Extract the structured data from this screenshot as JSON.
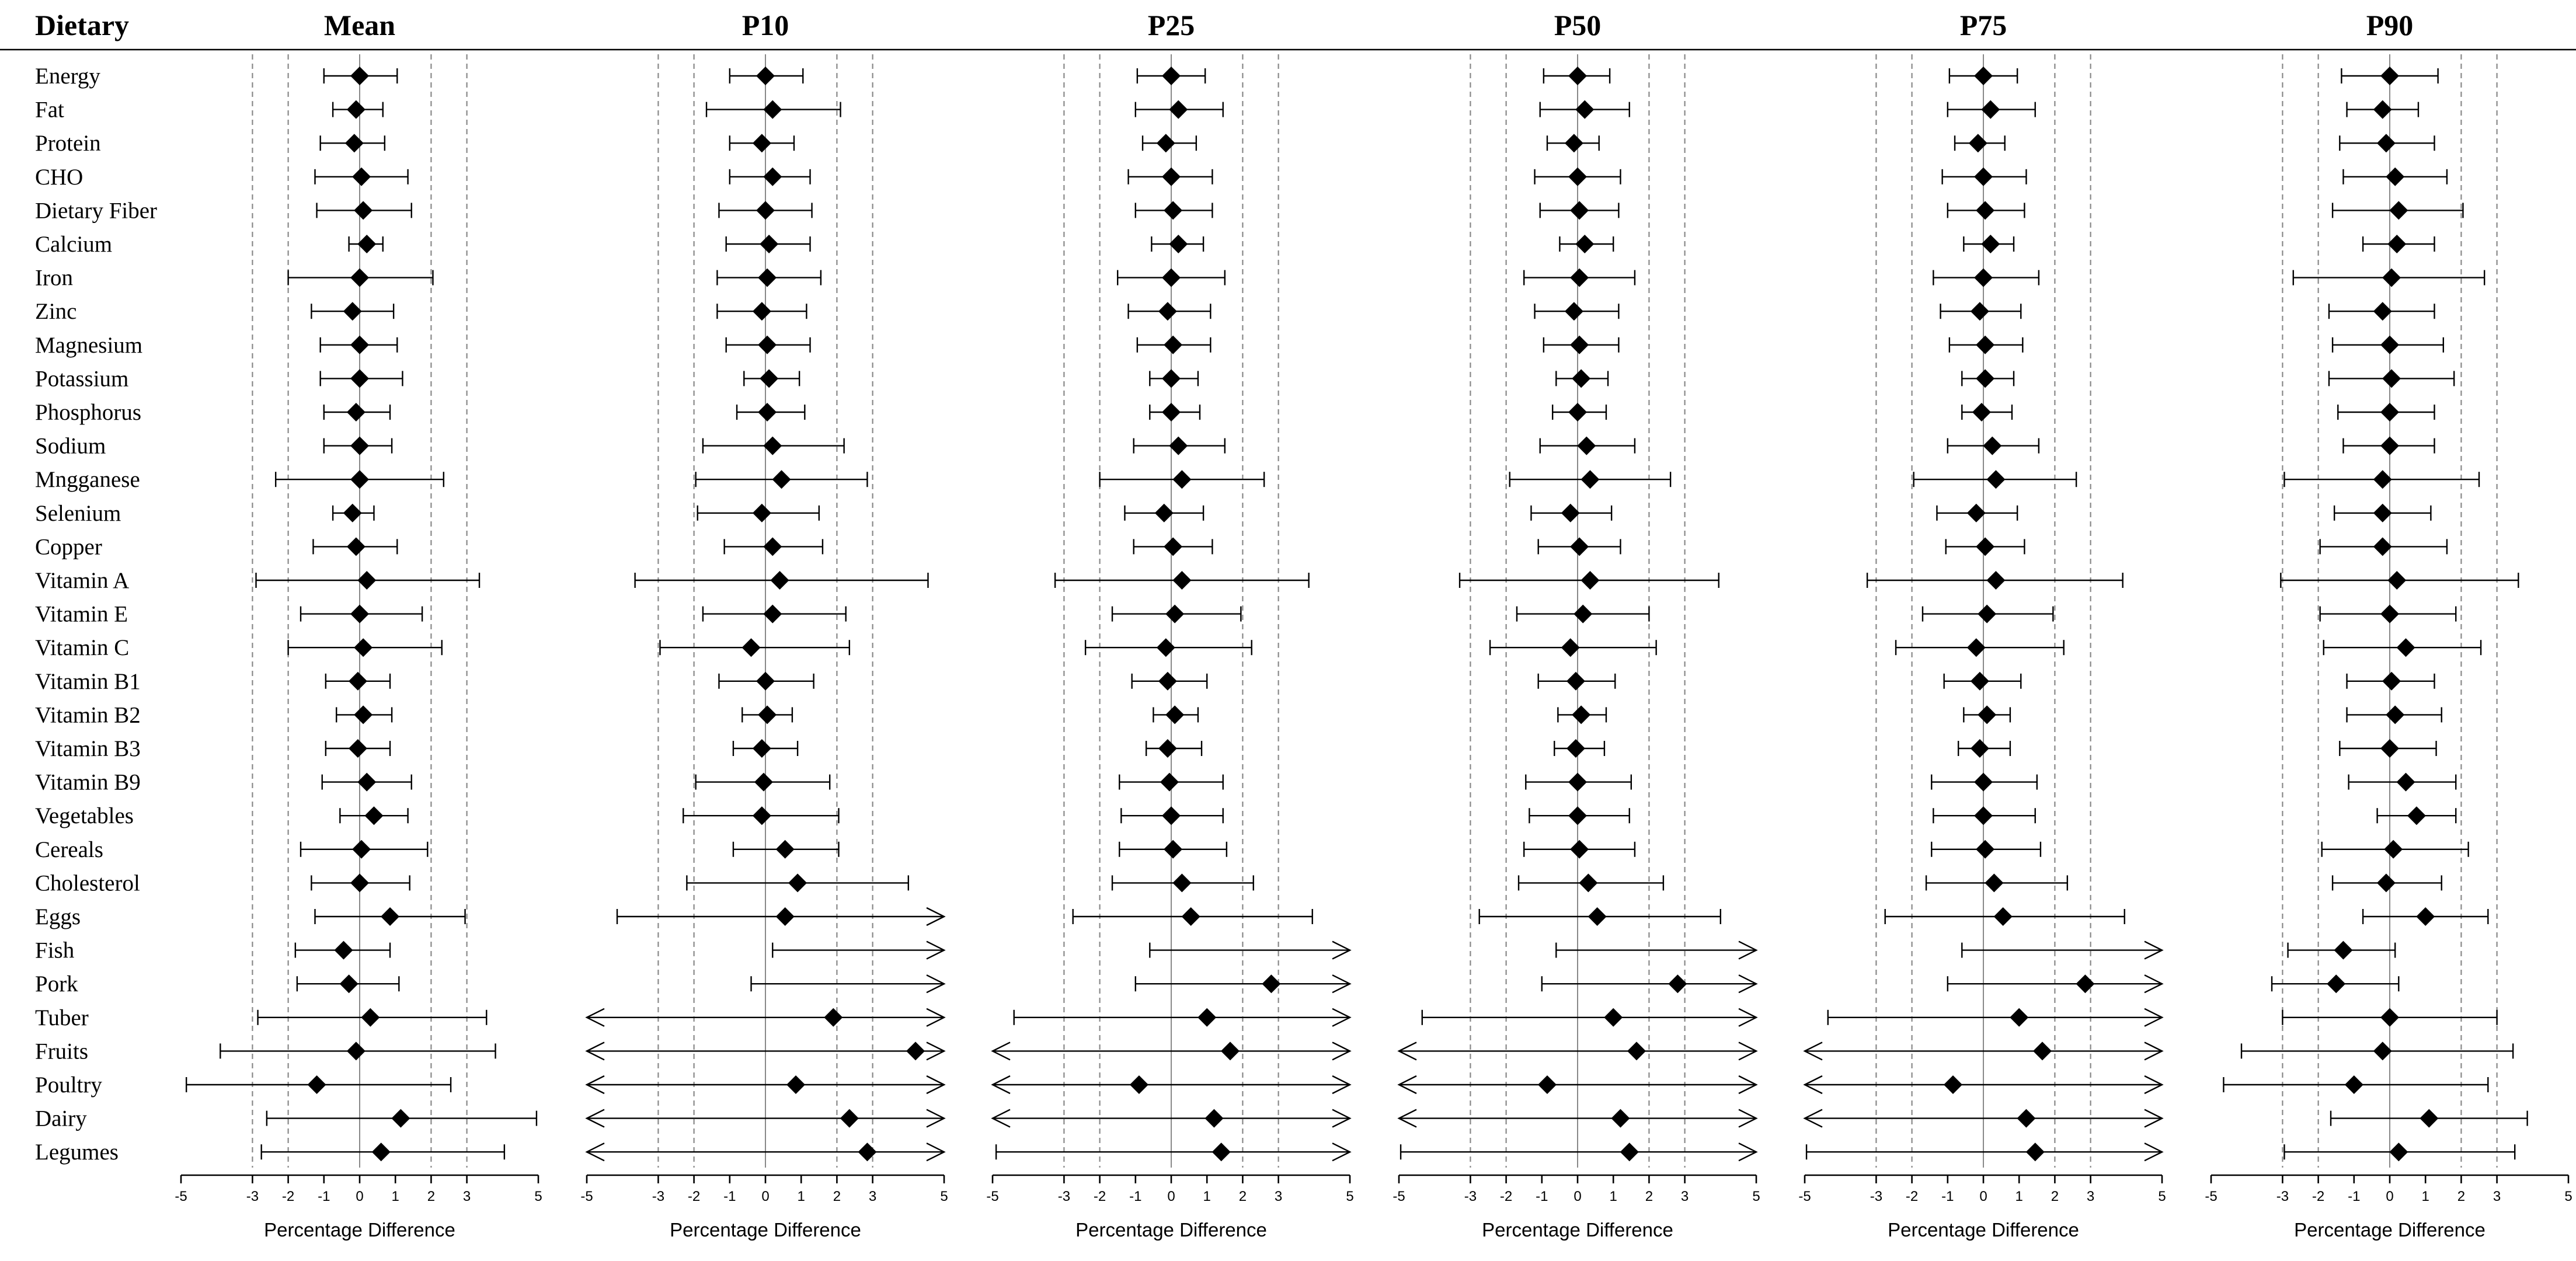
{
  "row_header": "Dietary",
  "rows": [
    "Energy",
    "Fat",
    "Protein",
    "CHO",
    "Dietary Fiber",
    "Calcium",
    "Iron",
    "Zinc",
    "Magnesium",
    "Potassium",
    "Phosphorus",
    "Sodium",
    "Mngganese",
    "Selenium",
    "Copper",
    "Vitamin A",
    "Vitamin E",
    "Vitamin C",
    "Vitamin B1",
    "Vitamin B2",
    "Vitamin B3",
    "Vitamin B9",
    "Vegetables",
    "Cereals",
    "Cholesterol",
    "Eggs",
    "Fish",
    "Pork",
    "Tuber",
    "Fruits",
    "Poultry",
    "Dairy",
    "Legumes"
  ],
  "colors": {
    "point": "#000000",
    "reference_lines": "#888888",
    "axis": "#000000"
  },
  "chart_data": [
    {
      "type": "forest",
      "title": "Mean",
      "xlabel": "Percentage Difference",
      "xlim": [
        -5,
        5
      ],
      "xticks": [
        "-5",
        "-3",
        "-2",
        "-1",
        "0",
        "1",
        "2",
        "3",
        "5"
      ],
      "reference_lines": [
        -3,
        -2,
        2,
        3
      ],
      "points": [
        0,
        -0.1,
        -0.15,
        0.05,
        0.1,
        0.2,
        0,
        -0.2,
        0,
        0,
        -0.1,
        0,
        0,
        -0.2,
        -0.1,
        0.2,
        0,
        0.1,
        -0.05,
        0.1,
        -0.05,
        0.2,
        0.4,
        0.05,
        0,
        0.85,
        -0.45,
        -0.3,
        0.3,
        -0.1,
        -1.2,
        1.15,
        0.6
      ],
      "ci_low": [
        -1,
        -0.75,
        -1.1,
        -1.25,
        -1.2,
        -0.3,
        -2,
        -1.35,
        -1.1,
        -1.1,
        -1,
        -1,
        -2.35,
        -0.75,
        -1.3,
        -2.9,
        -1.65,
        -2,
        -0.95,
        -0.65,
        -0.95,
        -1.05,
        -0.55,
        -1.65,
        -1.35,
        -1.25,
        -1.8,
        -1.75,
        -2.85,
        -3.9,
        -4.85,
        -2.6,
        -2.75
      ],
      "ci_high": [
        1.05,
        0.65,
        0.7,
        1.35,
        1.45,
        0.65,
        2.05,
        0.95,
        1.05,
        1.2,
        0.85,
        0.9,
        2.35,
        0.4,
        1.05,
        3.35,
        1.75,
        2.3,
        0.85,
        0.9,
        0.85,
        1.45,
        1.35,
        1.9,
        1.4,
        2.95,
        0.85,
        1.1,
        3.55,
        3.8,
        2.55,
        4.95,
        4.05
      ],
      "arrow_left": [],
      "arrow_right": []
    },
    {
      "type": "forest",
      "title": "P10",
      "xlabel": "Percentage Difference",
      "xlim": [
        -5,
        5
      ],
      "xticks": [
        "-5",
        "-3",
        "-2",
        "-1",
        "0",
        "1",
        "2",
        "3",
        "5"
      ],
      "reference_lines": [
        -3,
        -2,
        2,
        3
      ],
      "points": [
        0,
        0.2,
        -0.1,
        0.2,
        0,
        0.1,
        0.05,
        -0.1,
        0.05,
        0.1,
        0.05,
        0.2,
        0.45,
        -0.1,
        0.2,
        0.4,
        0.2,
        -0.4,
        0,
        0.05,
        -0.1,
        -0.05,
        -0.1,
        0.55,
        0.9,
        0.55,
        null,
        null,
        1.9,
        4.2,
        0.85,
        2.35,
        2.85
      ],
      "ci_low": [
        -1,
        -1.65,
        -1,
        -1,
        -1.3,
        -1.1,
        -1.35,
        -1.35,
        -1.1,
        -0.6,
        -0.8,
        -1.75,
        -1.95,
        -1.9,
        -1.15,
        -3.65,
        -1.75,
        -2.95,
        -1.3,
        -0.65,
        -0.9,
        -1.95,
        -2.3,
        -0.9,
        -2.2,
        -4.15,
        0.2,
        -0.4,
        -5,
        -5,
        -5,
        -5,
        -5
      ],
      "ci_high": [
        1.05,
        2.1,
        0.8,
        1.25,
        1.3,
        1.25,
        1.55,
        1.15,
        1.25,
        0.95,
        1.1,
        2.2,
        2.85,
        1.5,
        1.6,
        4.55,
        2.25,
        2.35,
        1.35,
        0.75,
        0.9,
        1.8,
        2.05,
        2.05,
        4,
        5,
        5,
        5,
        5,
        5,
        5,
        5,
        5
      ],
      "arrow_left": [
        "Tuber",
        "Fruits",
        "Poultry",
        "Dairy",
        "Legumes"
      ],
      "arrow_right": [
        "Eggs",
        "Fish",
        "Pork",
        "Tuber",
        "Fruits",
        "Poultry",
        "Dairy",
        "Legumes"
      ]
    },
    {
      "type": "forest",
      "title": "P25",
      "xlabel": "Percentage Difference",
      "xlim": [
        -5,
        5
      ],
      "xticks": [
        "-5",
        "-3",
        "-2",
        "-1",
        "0",
        "1",
        "2",
        "3",
        "5"
      ],
      "reference_lines": [
        -3,
        -2,
        2,
        3
      ],
      "points": [
        0,
        0.2,
        -0.15,
        0,
        0.05,
        0.2,
        0,
        -0.1,
        0.05,
        0,
        0,
        0.2,
        0.3,
        -0.2,
        0.05,
        0.3,
        0.1,
        -0.15,
        -0.1,
        0.1,
        -0.1,
        -0.05,
        0,
        0.05,
        0.3,
        0.55,
        null,
        2.8,
        1,
        1.65,
        -0.9,
        1.2,
        1.4
      ],
      "ci_low": [
        -0.95,
        -1,
        -0.8,
        -1.2,
        -1,
        -0.55,
        -1.5,
        -1.2,
        -0.95,
        -0.6,
        -0.6,
        -1.05,
        -2,
        -1.3,
        -1.05,
        -3.25,
        -1.65,
        -2.4,
        -1.1,
        -0.5,
        -0.7,
        -1.45,
        -1.4,
        -1.45,
        -1.65,
        -2.75,
        -0.6,
        -1,
        -4.4,
        -5,
        -5,
        -5,
        -4.9
      ],
      "ci_high": [
        0.95,
        1.45,
        0.7,
        1.15,
        1.15,
        0.9,
        1.5,
        1.1,
        1.1,
        0.75,
        0.8,
        1.5,
        2.6,
        0.9,
        1.15,
        3.85,
        1.95,
        2.25,
        1,
        0.75,
        0.85,
        1.45,
        1.45,
        1.55,
        2.3,
        3.95,
        5,
        5,
        5,
        5,
        5,
        5,
        5
      ],
      "arrow_left": [
        "Fruits",
        "Poultry",
        "Dairy"
      ],
      "arrow_right": [
        "Fish",
        "Pork",
        "Tuber",
        "Fruits",
        "Poultry",
        "Dairy",
        "Legumes"
      ]
    },
    {
      "type": "forest",
      "title": "P50",
      "xlabel": "Percentage Difference",
      "xlim": [
        -5,
        5
      ],
      "xticks": [
        "-5",
        "-3",
        "-2",
        "-1",
        "0",
        "1",
        "2",
        "3",
        "5"
      ],
      "reference_lines": [
        -3,
        -2,
        2,
        3
      ],
      "points": [
        0,
        0.2,
        -0.1,
        0,
        0.05,
        0.2,
        0.05,
        -0.1,
        0.05,
        0.1,
        0,
        0.25,
        0.35,
        -0.2,
        0.05,
        0.35,
        0.15,
        -0.2,
        -0.05,
        0.1,
        -0.05,
        0,
        0,
        0.05,
        0.3,
        0.55,
        null,
        2.8,
        1,
        1.65,
        -0.85,
        1.2,
        1.45
      ],
      "ci_low": [
        -0.95,
        -1.05,
        -0.85,
        -1.2,
        -1.05,
        -0.5,
        -1.5,
        -1.2,
        -0.95,
        -0.6,
        -0.7,
        -1.05,
        -1.9,
        -1.3,
        -1.1,
        -3.3,
        -1.7,
        -2.45,
        -1.1,
        -0.55,
        -0.65,
        -1.45,
        -1.35,
        -1.5,
        -1.65,
        -2.75,
        -0.6,
        -1,
        -4.35,
        -5,
        -5,
        -5,
        -4.95
      ],
      "ci_high": [
        0.9,
        1.45,
        0.6,
        1.2,
        1.15,
        1,
        1.6,
        1.15,
        1.15,
        0.85,
        0.8,
        1.6,
        2.6,
        0.95,
        1.2,
        3.95,
        2,
        2.2,
        1.05,
        0.8,
        0.75,
        1.5,
        1.45,
        1.6,
        2.4,
        4,
        5,
        5,
        5,
        5,
        5,
        5,
        5
      ],
      "arrow_left": [
        "Fruits",
        "Poultry",
        "Dairy"
      ],
      "arrow_right": [
        "Fish",
        "Pork",
        "Tuber",
        "Fruits",
        "Poultry",
        "Dairy",
        "Legumes"
      ]
    },
    {
      "type": "forest",
      "title": "P75",
      "xlabel": "Percentage Difference",
      "xlim": [
        -5,
        5
      ],
      "xticks": [
        "-5",
        "-3",
        "-2",
        "-1",
        "0",
        "1",
        "2",
        "3",
        "5"
      ],
      "reference_lines": [
        -3,
        -2,
        2,
        3
      ],
      "points": [
        0,
        0.2,
        -0.15,
        0,
        0.05,
        0.2,
        0,
        -0.1,
        0.05,
        0.05,
        -0.05,
        0.25,
        0.35,
        -0.2,
        0.05,
        0.35,
        0.1,
        -0.2,
        -0.1,
        0.1,
        -0.1,
        0,
        0,
        0.05,
        0.3,
        0.55,
        null,
        2.85,
        1,
        1.65,
        -0.85,
        1.2,
        1.45
      ],
      "ci_low": [
        -0.95,
        -1,
        -0.8,
        -1.15,
        -1,
        -0.55,
        -1.4,
        -1.2,
        -0.95,
        -0.6,
        -0.6,
        -1,
        -1.95,
        -1.3,
        -1.05,
        -3.25,
        -1.7,
        -2.45,
        -1.1,
        -0.55,
        -0.7,
        -1.45,
        -1.4,
        -1.45,
        -1.6,
        -2.75,
        -0.6,
        -1,
        -4.35,
        -5,
        -5,
        -5,
        -4.95
      ],
      "ci_high": [
        0.95,
        1.45,
        0.6,
        1.2,
        1.15,
        0.85,
        1.55,
        1.05,
        1.1,
        0.85,
        0.8,
        1.55,
        2.6,
        0.95,
        1.15,
        3.9,
        1.95,
        2.25,
        1.05,
        0.75,
        0.75,
        1.5,
        1.45,
        1.6,
        2.35,
        3.95,
        5,
        5,
        5,
        5,
        5,
        5,
        5
      ],
      "arrow_left": [
        "Fruits",
        "Poultry",
        "Dairy"
      ],
      "arrow_right": [
        "Fish",
        "Pork",
        "Tuber",
        "Fruits",
        "Poultry",
        "Dairy",
        "Legumes"
      ]
    },
    {
      "type": "forest",
      "title": "P90",
      "xlabel": "Percentage Difference",
      "xlim": [
        -5,
        5
      ],
      "xticks": [
        "-5",
        "-3",
        "-2",
        "-1",
        "0",
        "1",
        "2",
        "3",
        "5"
      ],
      "reference_lines": [
        -3,
        -2,
        2,
        3
      ],
      "points": [
        0,
        -0.2,
        -0.1,
        0.15,
        0.25,
        0.2,
        0.05,
        -0.2,
        0,
        0.05,
        0,
        0,
        -0.2,
        -0.2,
        -0.2,
        0.2,
        0,
        0.45,
        0.05,
        0.15,
        0,
        0.45,
        0.75,
        0.1,
        -0.1,
        1,
        -1.3,
        -1.5,
        0,
        -0.2,
        -1,
        1.1,
        0.25
      ],
      "ci_low": [
        -1.35,
        -1.2,
        -1.4,
        -1.3,
        -1.6,
        -0.75,
        -2.7,
        -1.7,
        -1.6,
        -1.7,
        -1.45,
        -1.3,
        -2.95,
        -1.55,
        -1.95,
        -3.05,
        -1.95,
        -1.85,
        -1.2,
        -1.2,
        -1.4,
        -1.15,
        -0.35,
        -1.9,
        -1.6,
        -0.75,
        -2.85,
        -3.3,
        -3,
        -4.15,
        -4.65,
        -1.65,
        -2.95
      ],
      "ci_high": [
        1.35,
        0.8,
        1.25,
        1.6,
        2.05,
        1.25,
        2.65,
        1.25,
        1.5,
        1.8,
        1.25,
        1.25,
        2.5,
        1.15,
        1.6,
        3.6,
        1.85,
        2.55,
        1.25,
        1.45,
        1.3,
        1.85,
        1.85,
        2.2,
        1.45,
        2.75,
        0.15,
        0.25,
        3,
        3.45,
        2.75,
        3.85,
        3.5
      ],
      "arrow_left": [],
      "arrow_right": []
    }
  ]
}
